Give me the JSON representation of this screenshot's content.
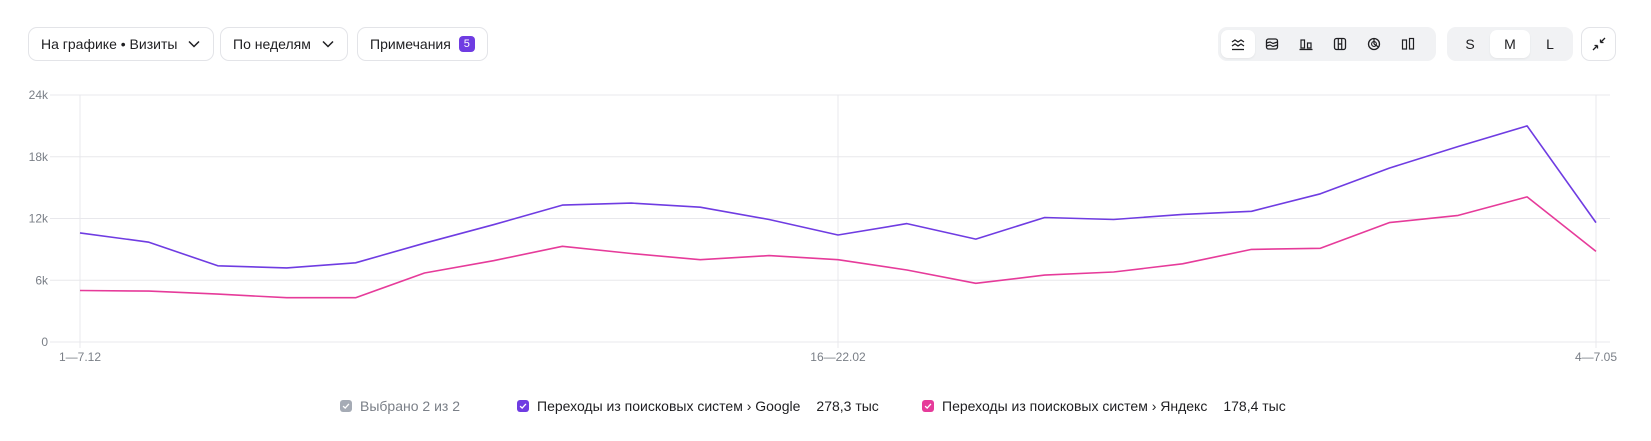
{
  "toolbar": {
    "chart_select_label": "На графике • Визиты",
    "grouping_label": "По неделям",
    "notes_label": "Примечания",
    "notes_count": "5",
    "chart_type_icons": [
      "line-chart-icon",
      "stacked-area-icon",
      "bar-chart-icon",
      "stacked-bar-icon",
      "pie-chart-icon",
      "column-chart-icon"
    ],
    "active_chart_type": "line-chart-icon",
    "sizes": [
      "S",
      "M",
      "L"
    ],
    "active_size": "M"
  },
  "colors": {
    "google": "#6f3ce2",
    "yandex": "#e63b9a",
    "grid": "#e8e8ec",
    "axis_text": "#7a7f87",
    "checkbox_all": "#a5abb5"
  },
  "legend": {
    "all_label": "Выбрано 2 из 2",
    "items": [
      {
        "label": "Переходы из поисковых систем › Google",
        "total": "278,3 тыс"
      },
      {
        "label": "Переходы из поисковых систем › Яндекс",
        "total": "178,4 тыс"
      }
    ]
  },
  "chart_data": {
    "type": "line",
    "y_ticks": [
      "0",
      "6k",
      "12k",
      "18k",
      "24k"
    ],
    "ylim": [
      0,
      24000
    ],
    "x_tick_labels": [
      {
        "index": 0,
        "label": "1—7.12"
      },
      {
        "index": 11,
        "label": "16—22.02"
      },
      {
        "index": 22,
        "label": "4—7.05"
      }
    ],
    "point_count": 23,
    "grid": true,
    "series": [
      {
        "name": "Переходы из поисковых систем › Google",
        "values": [
          10600,
          9700,
          7400,
          7200,
          7700,
          9600,
          11400,
          13300,
          13500,
          13100,
          11900,
          10400,
          11500,
          10000,
          12100,
          11900,
          12400,
          12700,
          14400,
          16900,
          19000,
          21000,
          11600
        ]
      },
      {
        "name": "Переходы из поисковых систем › Яндекс",
        "values": [
          5000,
          4950,
          4650,
          4300,
          4300,
          6700,
          7900,
          9300,
          8600,
          8000,
          8400,
          8000,
          7000,
          5700,
          6500,
          6800,
          7600,
          9000,
          9100,
          11600,
          12300,
          14100,
          8800
        ]
      }
    ]
  }
}
